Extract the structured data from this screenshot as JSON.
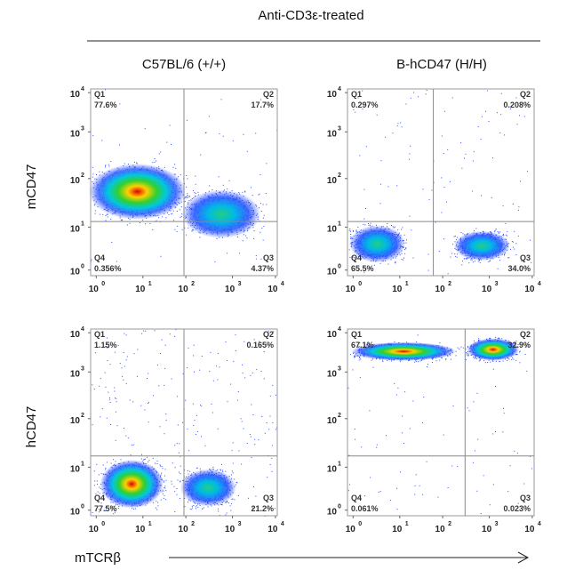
{
  "header": {
    "title": "Anti-CD3ε-treated"
  },
  "columns": [
    "C57BL/6 (+/+)",
    "B-hCD47 (H/H)"
  ],
  "rows": [
    "mCD47",
    "hCD47"
  ],
  "x_axis": {
    "label": "mTCRβ"
  },
  "tick_base": "10",
  "tick_exponents": [
    "0",
    "1",
    "2",
    "3",
    "4"
  ],
  "panels": [
    {
      "quadrants": [
        {
          "name": "Q1",
          "percent": "77.6%"
        },
        {
          "name": "Q2",
          "percent": "17.7%"
        },
        {
          "name": "Q3",
          "percent": "4.37%"
        },
        {
          "name": "Q4",
          "percent": "0.356%"
        }
      ]
    },
    {
      "quadrants": [
        {
          "name": "Q1",
          "percent": "0.297%"
        },
        {
          "name": "Q2",
          "percent": "0.208%"
        },
        {
          "name": "Q3",
          "percent": "34.0%"
        },
        {
          "name": "Q4",
          "percent": "65.5%"
        }
      ]
    },
    {
      "quadrants": [
        {
          "name": "Q1",
          "percent": "1.15%"
        },
        {
          "name": "Q2",
          "percent": "0.165%"
        },
        {
          "name": "Q3",
          "percent": "21.2%"
        },
        {
          "name": "Q4",
          "percent": "77.5%"
        }
      ]
    },
    {
      "quadrants": [
        {
          "name": "Q1",
          "percent": "67.1%"
        },
        {
          "name": "Q2",
          "percent": "32.9%"
        },
        {
          "name": "Q3",
          "percent": "0.023%"
        },
        {
          "name": "Q4",
          "percent": "0.061%"
        }
      ]
    }
  ]
}
